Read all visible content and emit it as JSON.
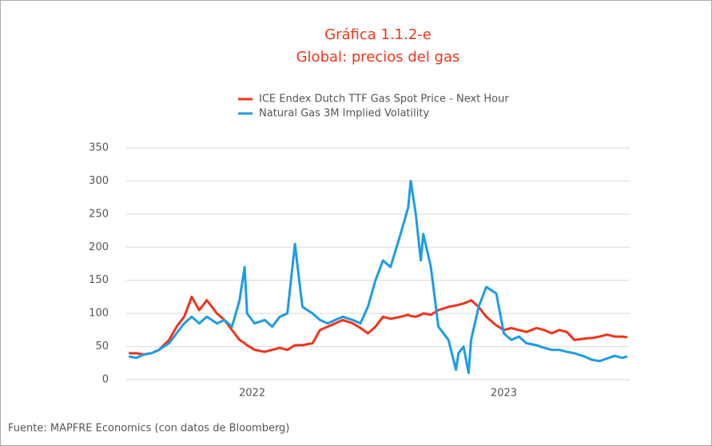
{
  "chart_data": {
    "type": "line",
    "title": "Gráfica 1.1.2-e",
    "subtitle": "Global: precios del gas",
    "source": "Fuente: MAPFRE Economics (con datos de Bloomberg)",
    "x": [
      2022.01,
      2022.04,
      2022.07,
      2022.1,
      2022.13,
      2022.17,
      2022.2,
      2022.23,
      2022.26,
      2022.29,
      2022.32,
      2022.36,
      2022.39,
      2022.42,
      2022.45,
      2022.47,
      2022.48,
      2022.51,
      2022.55,
      2022.58,
      2022.61,
      2022.64,
      2022.67,
      2022.69,
      2022.7,
      2022.74,
      2022.77,
      2022.8,
      2022.83,
      2022.86,
      2022.9,
      2022.93,
      2022.96,
      2022.99,
      2023.02,
      2023.05,
      2023.09,
      2023.12,
      2023.13,
      2023.15,
      2023.17,
      2023.18,
      2023.21,
      2023.24,
      2023.28,
      2023.31,
      2023.32,
      2023.34,
      2023.36,
      2023.37,
      2023.4,
      2023.43,
      2023.47,
      2023.5,
      2023.53,
      2023.56,
      2023.59,
      2023.63,
      2023.66,
      2023.69,
      2023.72,
      2023.75,
      2023.78,
      2023.82,
      2023.85,
      2023.88,
      2023.91,
      2023.94,
      2023.97,
      2023.99
    ],
    "series": [
      {
        "name": "ICE Endex Dutch TTF Gas Spot Price -  Next Hour",
        "color": "#f0341c",
        "values": [
          40,
          40,
          38,
          40,
          45,
          60,
          80,
          95,
          125,
          105,
          120,
          100,
          90,
          75,
          60,
          55,
          52,
          45,
          42,
          45,
          48,
          45,
          52,
          52,
          52,
          55,
          75,
          80,
          85,
          90,
          85,
          78,
          70,
          80,
          95,
          92,
          95,
          98,
          96,
          95,
          98,
          100,
          98,
          105,
          110,
          112,
          113,
          115,
          118,
          120,
          110,
          95,
          82,
          75,
          78,
          75,
          72,
          78,
          75,
          70,
          75,
          72,
          60,
          62,
          63,
          65,
          68,
          65,
          65,
          64
        ]
      },
      {
        "name": "Natural Gas 3M Implied Volatility",
        "color": "#1e9be6",
        "values": [
          35,
          33,
          38,
          40,
          45,
          55,
          70,
          85,
          95,
          85,
          95,
          85,
          90,
          80,
          120,
          170,
          100,
          85,
          90,
          80,
          95,
          100,
          205,
          140,
          110,
          100,
          90,
          85,
          90,
          95,
          90,
          85,
          110,
          150,
          180,
          170,
          220,
          260,
          300,
          250,
          180,
          220,
          170,
          80,
          60,
          15,
          40,
          50,
          10,
          60,
          110,
          140,
          130,
          70,
          60,
          65,
          55,
          52,
          48,
          45,
          45,
          42,
          40,
          35,
          30,
          28,
          32,
          36,
          33,
          35
        ]
      }
    ],
    "xlim": [
      2022,
      2024
    ],
    "xticks": [
      {
        "value": 2022.5,
        "label": "2022"
      },
      {
        "value": 2023.5,
        "label": "2023"
      }
    ],
    "ylim": [
      0,
      350
    ],
    "yticks": [
      0,
      50,
      100,
      150,
      200,
      250,
      300,
      350
    ],
    "grid": true,
    "legend": "top"
  }
}
